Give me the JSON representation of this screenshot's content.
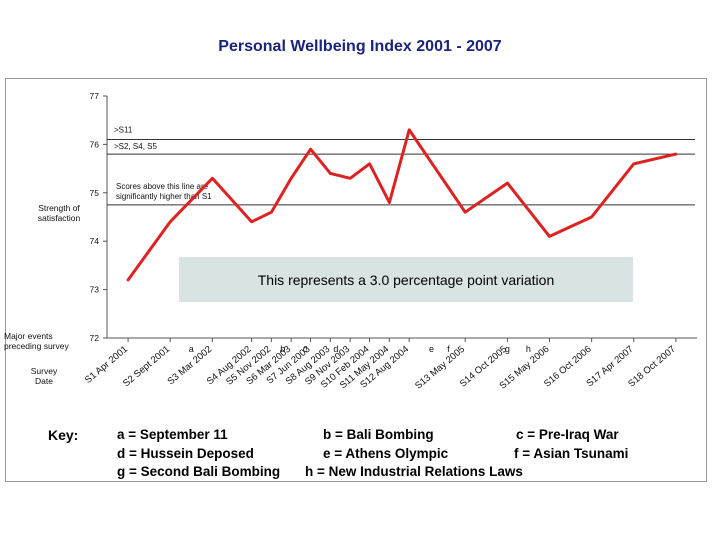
{
  "title": "Personal Wellbeing Index  2001 - 2007",
  "labels": {
    "ylabel": "Strength of satisfaction",
    "major_events": "Major events preceding survey",
    "survey_date": "Survey Date",
    "key_title": "Key:"
  },
  "chart_data": {
    "type": "line",
    "title": "Personal Wellbeing Index  2001 - 2007",
    "ylabel": "Strength of satisfaction",
    "xlabel": "Survey Date",
    "ylim": [
      72,
      77
    ],
    "yticks": [
      72,
      73,
      74,
      75,
      76,
      77
    ],
    "categories": [
      "S1 Apr 2001",
      "S2 Sept 2001",
      "S3 Mar 2002",
      "S4 Aug 2002",
      "S5 Nov 2002",
      "S6 Mar 2003",
      "S7 Jun 2003",
      "S8 Aug 2003",
      "S9 Nov 2003",
      "S10 Feb 2004",
      "S11 May 2004",
      "S12 Aug 2004",
      "S13 May 2005",
      "S14 Oct 2005",
      "S15 May 2006",
      "S16 Oct 2006",
      "S17 Apr 2007",
      "S18 Oct 2007"
    ],
    "x_positions": [
      1,
      2,
      3,
      3.93,
      4.4,
      4.87,
      5.33,
      5.8,
      6.27,
      6.73,
      7.2,
      7.67,
      9,
      10,
      11,
      12,
      13,
      14
    ],
    "series": [
      {
        "name": "Personal Wellbeing Index",
        "color": "#dd2222",
        "values": [
          73.2,
          74.4,
          75.3,
          74.4,
          74.6,
          75.3,
          75.9,
          75.4,
          75.3,
          75.6,
          74.8,
          76.3,
          74.6,
          75.2,
          74.1,
          74.5,
          75.6,
          75.8
        ]
      }
    ],
    "reference_lines": [
      {
        "value": 76.1,
        "label": ">S11"
      },
      {
        "value": 75.8,
        "label": ">S2, S4, S5"
      },
      {
        "value": 74.75,
        "label": "Scores above this line are significantly higher than S1"
      }
    ],
    "annotation": "This represents a 3.0 percentage point variation",
    "events": [
      {
        "letter": "a",
        "x": 2.5
      },
      {
        "letter": "b",
        "x": 4.67
      },
      {
        "letter": "c",
        "x": 5.2
      },
      {
        "letter": "d",
        "x": 5.93
      },
      {
        "letter": "e",
        "x": 8.2
      },
      {
        "letter": "f",
        "x": 8.6
      },
      {
        "letter": "g",
        "x": 10
      },
      {
        "letter": "h",
        "x": 10.5
      }
    ]
  },
  "key": [
    {
      "text": "a = September 11"
    },
    {
      "text": "b = Bali Bombing"
    },
    {
      "text": "c = Pre-Iraq War"
    },
    {
      "text": "d = Hussein Deposed"
    },
    {
      "text": "e = Athens Olympic"
    },
    {
      "text": "f = Asian Tsunami"
    },
    {
      "text": "g = Second Bali Bombing"
    },
    {
      "text": "h = New Industrial Relations Laws"
    }
  ]
}
